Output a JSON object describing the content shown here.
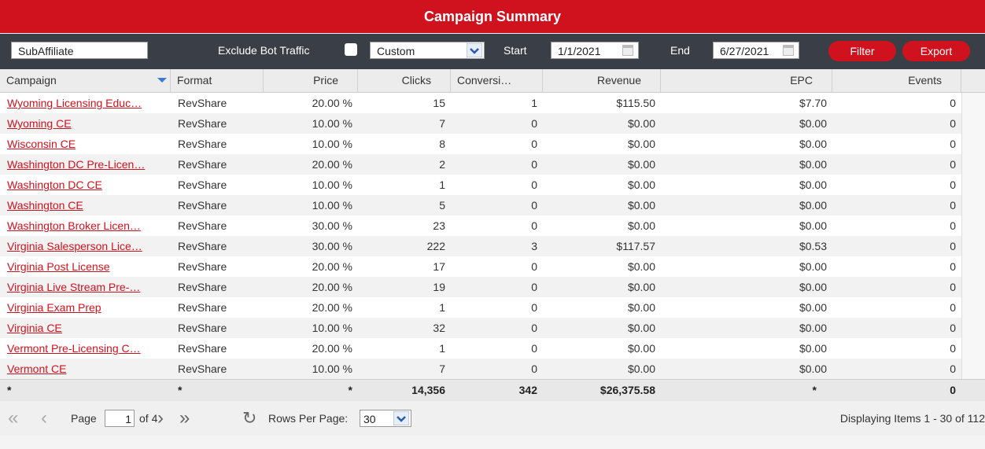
{
  "header": {
    "title": "Campaign Summary"
  },
  "toolbar": {
    "group_by": "SubAffiliate",
    "exclude_label": "Exclude Bot Traffic",
    "range": "Custom",
    "start_label": "Start",
    "start_date": "1/1/2021",
    "end_label": "End",
    "end_date": "6/27/2021",
    "filter_button": "Filter",
    "export_button": "Export"
  },
  "table": {
    "columns": [
      "Campaign",
      "Format",
      "Price",
      "Clicks",
      "Conversi…",
      "Revenue",
      "EPC",
      "Events"
    ],
    "rows": [
      [
        "Wyoming Licensing Educ…",
        "RevShare",
        "20.00 %",
        "15",
        "1",
        "$115.50",
        "$7.70",
        "0"
      ],
      [
        "Wyoming CE",
        "RevShare",
        "10.00 %",
        "7",
        "0",
        "$0.00",
        "$0.00",
        "0"
      ],
      [
        "Wisconsin CE",
        "RevShare",
        "10.00 %",
        "8",
        "0",
        "$0.00",
        "$0.00",
        "0"
      ],
      [
        "Washington DC Pre-Licen…",
        "RevShare",
        "20.00 %",
        "2",
        "0",
        "$0.00",
        "$0.00",
        "0"
      ],
      [
        "Washington DC CE",
        "RevShare",
        "10.00 %",
        "1",
        "0",
        "$0.00",
        "$0.00",
        "0"
      ],
      [
        "Washington CE",
        "RevShare",
        "10.00 %",
        "5",
        "0",
        "$0.00",
        "$0.00",
        "0"
      ],
      [
        "Washington Broker Licen…",
        "RevShare",
        "30.00 %",
        "23",
        "0",
        "$0.00",
        "$0.00",
        "0"
      ],
      [
        "Virginia Salesperson Lice…",
        "RevShare",
        "30.00 %",
        "222",
        "3",
        "$117.57",
        "$0.53",
        "0"
      ],
      [
        "Virginia Post License",
        "RevShare",
        "20.00 %",
        "17",
        "0",
        "$0.00",
        "$0.00",
        "0"
      ],
      [
        "Virginia Live Stream Pre-…",
        "RevShare",
        "20.00 %",
        "19",
        "0",
        "$0.00",
        "$0.00",
        "0"
      ],
      [
        "Virginia Exam Prep",
        "RevShare",
        "20.00 %",
        "1",
        "0",
        "$0.00",
        "$0.00",
        "0"
      ],
      [
        "Virginia CE",
        "RevShare",
        "10.00 %",
        "32",
        "0",
        "$0.00",
        "$0.00",
        "0"
      ],
      [
        "Vermont Pre-Licensing C…",
        "RevShare",
        "20.00 %",
        "1",
        "0",
        "$0.00",
        "$0.00",
        "0"
      ],
      [
        "Vermont CE",
        "RevShare",
        "10.00 %",
        "7",
        "0",
        "$0.00",
        "$0.00",
        "0"
      ]
    ],
    "totals": [
      "*",
      "*",
      "*",
      "14,356",
      "342",
      "$26,375.58",
      "*",
      "0"
    ]
  },
  "pager": {
    "page_label": "Page",
    "page": "1",
    "of_pages": "of 4",
    "rows_label": "Rows Per Page:",
    "rows_per_page": "30",
    "status": "Displaying Items 1 - 30 of 112"
  }
}
